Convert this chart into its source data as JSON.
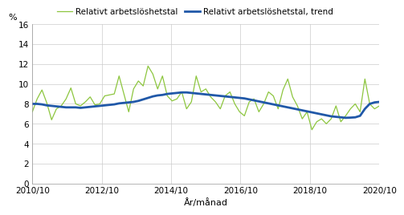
{
  "ylabel": "%",
  "xlabel": "År/månad",
  "ylim": [
    0,
    16
  ],
  "yticks": [
    0,
    2,
    4,
    6,
    8,
    10,
    12,
    14,
    16
  ],
  "xtick_labels": [
    "2010/10",
    "2012/10",
    "2014/10",
    "2016/10",
    "2018/10",
    "2020/10"
  ],
  "legend_line1": "Relativt arbetslöshetstal",
  "legend_line2": "Relativt arbetslöshetstal, trend",
  "line_color": "#8dc63f",
  "trend_color": "#2058a8",
  "raw": [
    7.2,
    8.5,
    9.4,
    8.1,
    6.4,
    7.5,
    7.8,
    8.5,
    9.6,
    8.0,
    7.8,
    8.2,
    8.7,
    7.9,
    8.0,
    8.8,
    8.9,
    9.0,
    10.8,
    9.0,
    7.2,
    9.5,
    10.3,
    9.8,
    11.8,
    11.0,
    9.5,
    10.8,
    8.8,
    8.3,
    8.5,
    9.2,
    7.5,
    8.2,
    10.8,
    9.2,
    9.5,
    8.7,
    8.2,
    7.5,
    8.8,
    9.2,
    8.0,
    7.2,
    6.8,
    8.2,
    8.5,
    7.2,
    8.0,
    9.2,
    8.8,
    7.5,
    9.4,
    10.5,
    8.7,
    7.8,
    6.5,
    7.2,
    5.4,
    6.2,
    6.5,
    6.0,
    6.5,
    7.8,
    6.2,
    6.8,
    7.5,
    8.0,
    7.2,
    10.5,
    8.0,
    7.5,
    7.8
  ],
  "trend": [
    8.0,
    8.0,
    7.95,
    7.85,
    7.8,
    7.75,
    7.7,
    7.65,
    7.65,
    7.65,
    7.6,
    7.65,
    7.7,
    7.75,
    7.8,
    7.85,
    7.9,
    7.95,
    8.05,
    8.1,
    8.15,
    8.2,
    8.3,
    8.45,
    8.6,
    8.75,
    8.85,
    8.9,
    9.0,
    9.05,
    9.1,
    9.15,
    9.15,
    9.1,
    9.05,
    9.0,
    8.95,
    8.9,
    8.85,
    8.8,
    8.75,
    8.7,
    8.65,
    8.6,
    8.55,
    8.45,
    8.35,
    8.25,
    8.15,
    8.05,
    7.95,
    7.85,
    7.75,
    7.65,
    7.55,
    7.45,
    7.35,
    7.25,
    7.15,
    7.05,
    6.95,
    6.85,
    6.75,
    6.7,
    6.65,
    6.6,
    6.62,
    6.65,
    6.8,
    7.5,
    8.0,
    8.15,
    8.2
  ]
}
